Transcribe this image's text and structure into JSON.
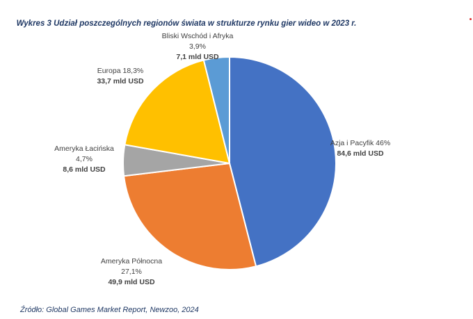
{
  "chart_data": {
    "type": "pie",
    "title": "Wykres 3 Udział poszczególnych regionów świata w strukturze rynku gier wideo w 2023 r.",
    "source": "Źródło: Global Games Market Report, Newzoo, 2024",
    "start": "top, clockwise",
    "slices": [
      {
        "name": "Azja i Pacyfik",
        "percent": 46,
        "pct_label": "46%",
        "value_label": "84,6 mld USD",
        "value": 84.6,
        "color": "#4472c4"
      },
      {
        "name": "Ameryka Północna",
        "percent": 27.1,
        "pct_label": "27,1%",
        "value_label": "49,9 mld USD",
        "value": 49.9,
        "color": "#ed7d31"
      },
      {
        "name": "Ameryka Łacińska",
        "percent": 4.7,
        "pct_label": "4,7%",
        "value_label": "8,6 mld USD",
        "value": 8.6,
        "color": "#a5a5a5"
      },
      {
        "name": "Europa",
        "percent": 18.3,
        "pct_label": "18,3%",
        "value_label": "33,7 mld USD",
        "value": 33.7,
        "color": "#ffc000"
      },
      {
        "name": "Bliski Wschód i Afryka",
        "percent": 3.9,
        "pct_label": "3,9%",
        "value_label": "7,1 mld USD",
        "value": 7.1,
        "color": "#5b9bd5"
      }
    ]
  }
}
